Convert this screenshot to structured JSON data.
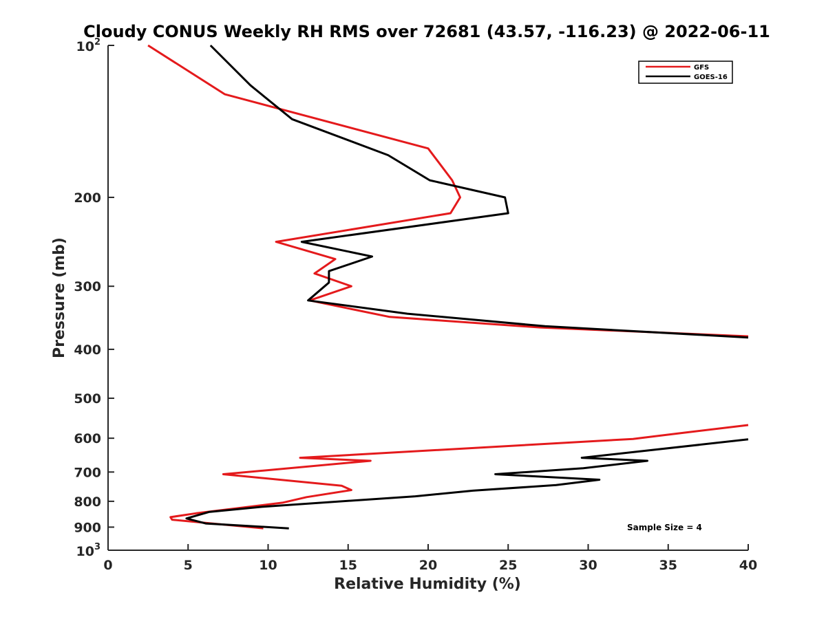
{
  "chart_data": {
    "type": "line",
    "title": "Cloudy CONUS Weekly RH RMS over 72681 (43.57, -116.23) @ 2022-06-11",
    "xlabel": "Relative Humidity (%)",
    "ylabel": "Pressure (mb)",
    "xlim": [
      0,
      40
    ],
    "ylim": [
      100,
      1000
    ],
    "y_scale": "log",
    "y_reversed": true,
    "grid": false,
    "legend_position": "top-right",
    "x_ticks": [
      "0",
      "5",
      "10",
      "15",
      "20",
      "25",
      "30",
      "35",
      "40"
    ],
    "y_ticks": [
      {
        "value": 100,
        "base": "10",
        "exp": "2"
      },
      {
        "value": 200,
        "label": "200"
      },
      {
        "value": 300,
        "label": "300"
      },
      {
        "value": 400,
        "label": "400"
      },
      {
        "value": 500,
        "label": "500"
      },
      {
        "value": 600,
        "label": "600"
      },
      {
        "value": 700,
        "label": "700"
      },
      {
        "value": 800,
        "label": "800"
      },
      {
        "value": 900,
        "label": "900"
      },
      {
        "value": 1000,
        "base": "10",
        "exp": "3"
      }
    ],
    "series": [
      {
        "name": "GFS",
        "color": "#e41a1c",
        "segments": [
          [
            [
              2.5,
              100
            ],
            [
              7.3,
              125
            ],
            [
              20.0,
              160
            ],
            [
              21.5,
              185
            ],
            [
              22.0,
              200
            ],
            [
              21.4,
              215
            ],
            [
              10.5,
              245
            ],
            [
              14.2,
              265
            ],
            [
              12.9,
              283
            ],
            [
              15.2,
              300
            ],
            [
              12.6,
              320
            ],
            [
              17.6,
              345
            ],
            [
              27.0,
              362
            ],
            [
              40.0,
              377
            ]
          ],
          [
            [
              40.0,
              565
            ],
            [
              36.0,
              585
            ],
            [
              32.8,
              602
            ],
            [
              12.0,
              656
            ],
            [
              16.4,
              665
            ],
            [
              7.2,
              707
            ],
            [
              14.6,
              745
            ],
            [
              15.2,
              760
            ],
            [
              12.4,
              785
            ],
            [
              10.9,
              805
            ],
            [
              5.5,
              845
            ],
            [
              3.9,
              860
            ],
            [
              4.0,
              870
            ],
            [
              9.7,
              905
            ]
          ]
        ]
      },
      {
        "name": "GOES-16",
        "color": "#000000",
        "segments": [
          [
            [
              6.4,
              100
            ],
            [
              8.9,
              120
            ],
            [
              11.5,
              140
            ],
            [
              17.5,
              165
            ],
            [
              20.1,
              185
            ],
            [
              24.8,
              200
            ],
            [
              25.0,
              215
            ],
            [
              12.1,
              245
            ],
            [
              16.5,
              262
            ],
            [
              13.8,
              280
            ],
            [
              13.8,
              295
            ],
            [
              12.5,
              320
            ],
            [
              18.7,
              340
            ],
            [
              27.3,
              360
            ],
            [
              40.0,
              379
            ]
          ],
          [
            [
              40.0,
              603
            ],
            [
              29.6,
              656
            ],
            [
              33.7,
              665
            ],
            [
              29.7,
              688
            ],
            [
              24.2,
              707
            ],
            [
              30.7,
              725
            ],
            [
              28.0,
              743
            ],
            [
              22.8,
              762
            ],
            [
              19.2,
              782
            ],
            [
              9.7,
              820
            ],
            [
              6.3,
              840
            ],
            [
              4.9,
              865
            ],
            [
              6.1,
              885
            ],
            [
              11.3,
              905
            ]
          ]
        ]
      }
    ],
    "annotations": [
      {
        "text": "Sample Size = 4"
      }
    ]
  }
}
